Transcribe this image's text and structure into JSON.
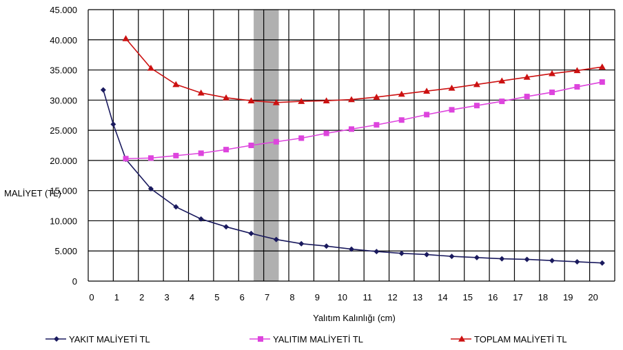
{
  "chart_data": {
    "type": "line",
    "title": "",
    "xlabel": "Yalıtım Kalınlığı (cm)",
    "ylabel": "MALİYET (TL)",
    "xlim": [
      0,
      21
    ],
    "ylim": [
      0,
      45000
    ],
    "grid": true,
    "legend_position": "bottom",
    "x_ticks": [
      "0",
      "1",
      "2",
      "3",
      "4",
      "5",
      "6",
      "7",
      "8",
      "9",
      "10",
      "11",
      "12",
      "13",
      "14",
      "15",
      "16",
      "17",
      "18",
      "19",
      "20"
    ],
    "y_ticks": [
      "0",
      "5.000",
      "10.000",
      "15.000",
      "20.000",
      "25.000",
      "30.000",
      "35.000",
      "40.000",
      "45.000"
    ],
    "highlight_band": [
      6.6,
      7.6
    ],
    "series": [
      {
        "name": "YAKIT MALİYETİ TL",
        "color": "#1a1a5e",
        "marker": "diamond",
        "x": [
          0.6,
          1.0,
          1.5,
          2.5,
          3.5,
          4.5,
          5.5,
          6.5,
          7.5,
          8.5,
          9.5,
          10.5,
          11.5,
          12.5,
          13.5,
          14.5,
          15.5,
          16.5,
          17.5,
          18.5,
          19.5,
          20.5
        ],
        "values": [
          31700,
          26000,
          20200,
          15300,
          12300,
          10300,
          9000,
          7900,
          6900,
          6200,
          5800,
          5300,
          4900,
          4600,
          4400,
          4100,
          3900,
          3700,
          3600,
          3400,
          3200,
          3000
        ]
      },
      {
        "name": "YALITIM MALİYETİ TL",
        "color": "#dd44dd",
        "marker": "square",
        "x": [
          1.5,
          2.5,
          3.5,
          4.5,
          5.5,
          6.5,
          7.5,
          8.5,
          9.5,
          10.5,
          11.5,
          12.5,
          13.5,
          14.5,
          15.5,
          16.5,
          17.5,
          18.5,
          19.5,
          20.5
        ],
        "values": [
          20300,
          20400,
          20800,
          21200,
          21800,
          22500,
          23100,
          23700,
          24500,
          25200,
          25900,
          26700,
          27600,
          28400,
          29100,
          29800,
          30600,
          31300,
          32200,
          33000
        ]
      },
      {
        "name": "TOPLAM MALİYETİ TL",
        "color": "#cc1111",
        "marker": "triangle",
        "x": [
          1.5,
          2.5,
          3.5,
          4.5,
          5.5,
          6.5,
          7.5,
          8.5,
          9.5,
          10.5,
          11.5,
          12.5,
          13.5,
          14.5,
          15.5,
          16.5,
          17.5,
          18.5,
          19.5,
          20.5
        ],
        "values": [
          40200,
          35300,
          32600,
          31200,
          30400,
          29900,
          29600,
          29800,
          29900,
          30100,
          30500,
          31000,
          31500,
          32000,
          32600,
          33200,
          33800,
          34400,
          34900,
          35500
        ]
      }
    ]
  }
}
